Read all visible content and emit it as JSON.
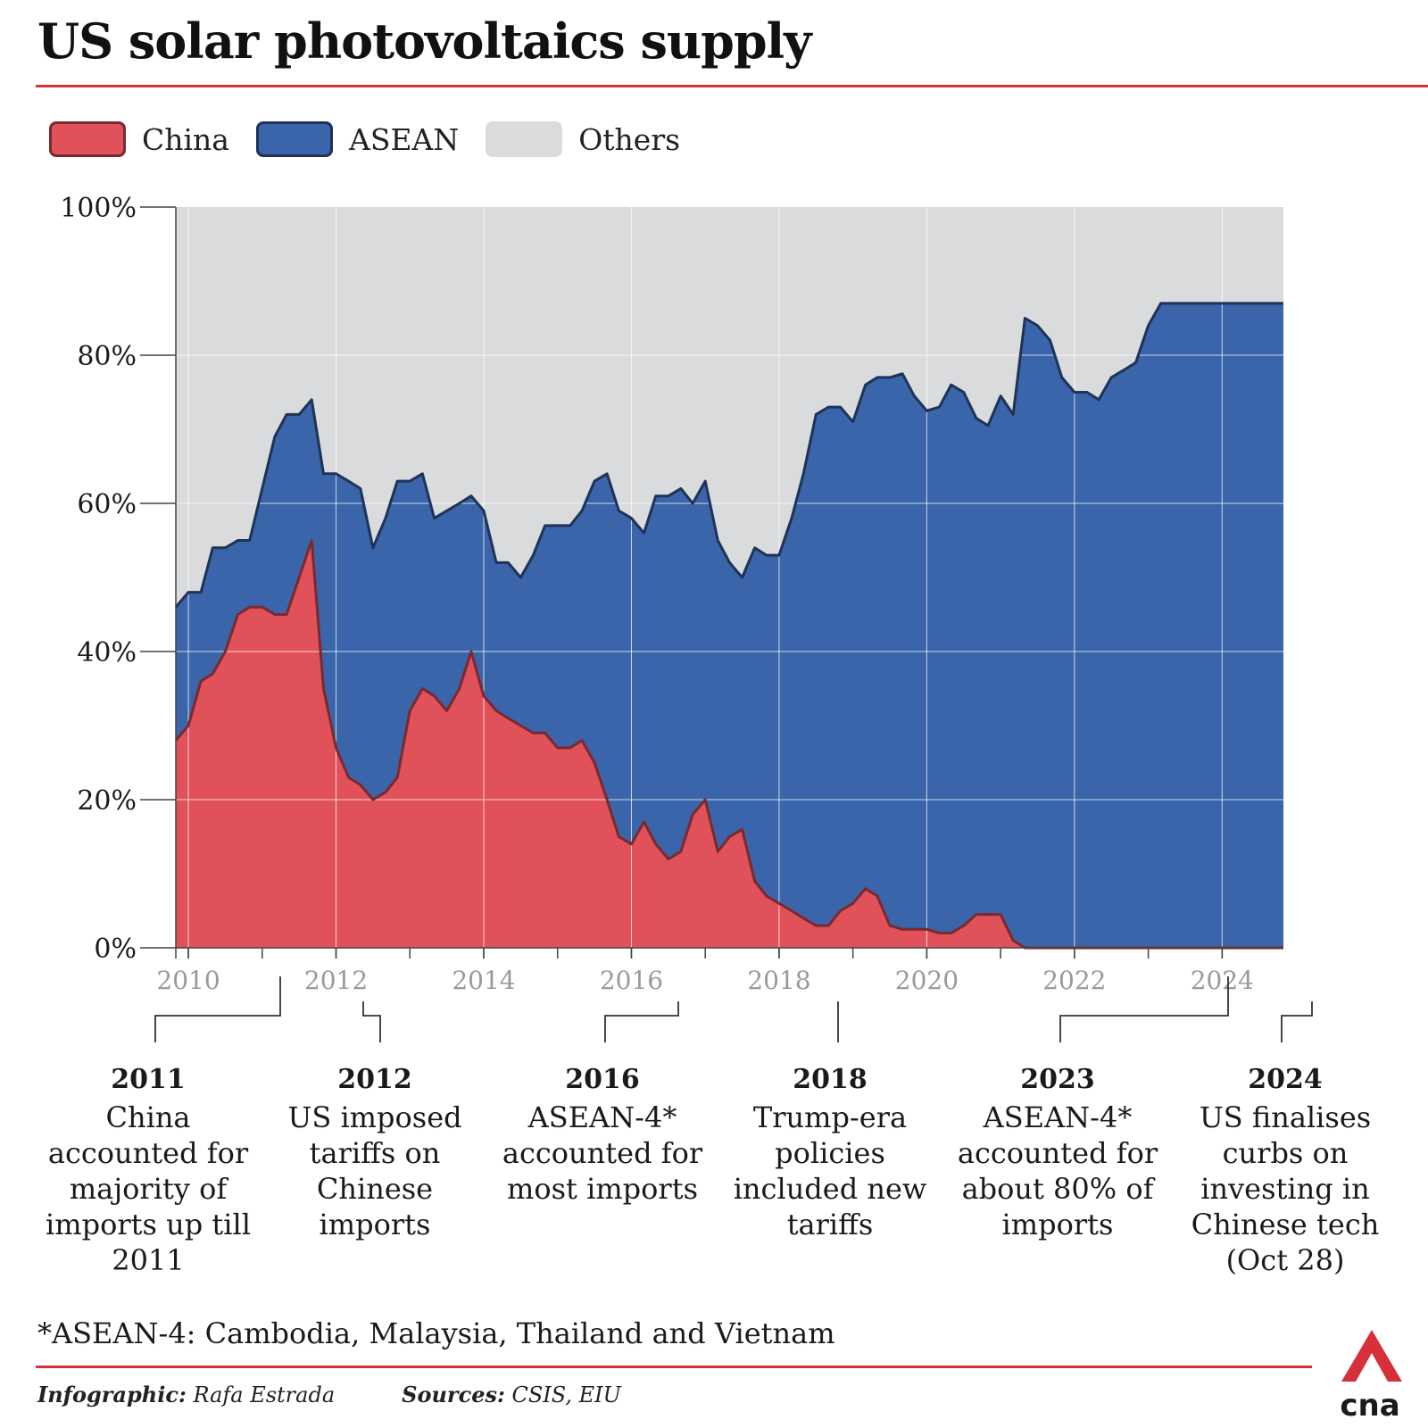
{
  "title": "US solar photovoltaics supply",
  "legend": [
    {
      "name": "China",
      "color": "#e0515a",
      "stroke": "#7a2a2e"
    },
    {
      "name": "ASEAN",
      "color": "#3a65aa",
      "stroke": "#1e3357"
    },
    {
      "name": "Others",
      "color": "#dadbdd",
      "stroke": "#dadbdd"
    }
  ],
  "annotations": [
    {
      "year": "2011",
      "text": "China accounted for majority of imports up till 2011"
    },
    {
      "year": "2012",
      "text": "US imposed tariffs on Chinese imports"
    },
    {
      "year": "2016",
      "text": "ASEAN-4* accounted for most imports"
    },
    {
      "year": "2018",
      "text": "Trump-era policies included new tariffs"
    },
    {
      "year": "2023",
      "text": "ASEAN-4* accounted for about 80% of imports"
    },
    {
      "year": "2024",
      "text": "US finalises curbs on investing in Chinese tech (Oct 28)"
    }
  ],
  "footnote": "*ASEAN-4: Cambodia, Malaysia, Thailand and Vietnam",
  "credits": {
    "infographic_label": "Infographic:",
    "infographic_value": "Rafa Estrada",
    "sources_label": "Sources:",
    "sources_value": "CSIS, EIU"
  },
  "logo_text": "cna",
  "chart_data": {
    "type": "area",
    "stacked": true,
    "ylim": [
      0,
      100
    ],
    "xlim": [
      2009.83,
      2024.83
    ],
    "yticks": [
      0,
      20,
      40,
      60,
      80,
      100
    ],
    "ytick_labels": [
      "0%",
      "20%",
      "40%",
      "60%",
      "80%",
      "100%"
    ],
    "xticks": [
      2010,
      2012,
      2014,
      2016,
      2018,
      2020,
      2022,
      2024
    ],
    "xtick_labels": [
      "2010",
      "2012",
      "2014",
      "2016",
      "2018",
      "2020",
      "2022",
      "2024"
    ],
    "grid": true,
    "legend_position": "top-left",
    "x": [
      2009.83,
      2010.0,
      2010.17,
      2010.33,
      2010.5,
      2010.67,
      2010.83,
      2011.0,
      2011.17,
      2011.33,
      2011.5,
      2011.67,
      2011.83,
      2012.0,
      2012.17,
      2012.33,
      2012.5,
      2012.67,
      2012.83,
      2013.0,
      2013.17,
      2013.33,
      2013.5,
      2013.67,
      2013.83,
      2014.0,
      2014.17,
      2014.33,
      2014.5,
      2014.67,
      2014.83,
      2015.0,
      2015.17,
      2015.33,
      2015.5,
      2015.67,
      2015.83,
      2016.0,
      2016.17,
      2016.33,
      2016.5,
      2016.67,
      2016.83,
      2017.0,
      2017.17,
      2017.33,
      2017.5,
      2017.67,
      2017.83,
      2018.0,
      2018.17,
      2018.33,
      2018.5,
      2018.67,
      2018.83,
      2019.0,
      2019.17,
      2019.33,
      2019.5,
      2019.67,
      2019.83,
      2020.0,
      2020.17,
      2020.33,
      2020.5,
      2020.67,
      2020.83,
      2021.0,
      2021.17,
      2021.33,
      2021.5,
      2021.67,
      2021.83,
      2022.0,
      2022.17,
      2022.33,
      2022.5,
      2022.67,
      2022.83,
      2023.0,
      2023.17,
      2023.33,
      2023.5,
      2023.67,
      2023.83,
      2024.0,
      2024.17,
      2024.33,
      2024.5,
      2024.67,
      2024.83
    ],
    "series": [
      {
        "name": "China",
        "values": [
          28,
          30,
          36,
          37,
          40,
          45,
          46,
          46,
          45,
          45,
          50,
          55,
          35,
          27,
          23,
          22,
          20,
          21,
          23,
          32,
          35,
          34,
          32,
          35,
          40,
          34,
          32,
          31,
          30,
          29,
          29,
          27,
          27,
          28,
          25,
          20,
          15,
          14,
          17,
          14,
          12,
          13,
          18,
          20,
          13,
          15,
          16,
          9,
          7,
          6,
          5,
          4,
          3,
          3,
          5,
          6,
          8,
          7,
          3,
          2.5,
          2.5,
          2.5,
          2,
          2,
          3,
          4.5,
          4.5,
          4.5,
          1,
          0,
          0,
          0,
          0,
          0,
          0,
          0,
          0,
          0,
          0,
          0,
          0,
          0,
          0,
          0,
          0,
          0,
          0,
          0,
          0,
          0,
          0
        ]
      },
      {
        "name": "ASEAN",
        "values": [
          18,
          18,
          12,
          17,
          14,
          10,
          9,
          16,
          24,
          27,
          22,
          19,
          29,
          37,
          40,
          40,
          34,
          37,
          40,
          31,
          29,
          24,
          27,
          25,
          21,
          25,
          20,
          21,
          20,
          24,
          28,
          30,
          30,
          31,
          38,
          44,
          44,
          44,
          39,
          47,
          49,
          49,
          42,
          43,
          42,
          37,
          34,
          45,
          46,
          47,
          53,
          60,
          69,
          70,
          68,
          65,
          68,
          70,
          74,
          75,
          72,
          70,
          71,
          74,
          72,
          67,
          66,
          70,
          71,
          85,
          84,
          82,
          77,
          75,
          75,
          74,
          77,
          78,
          79,
          84,
          87,
          87,
          87,
          87,
          87,
          87,
          87,
          87,
          87,
          87,
          87
        ]
      }
    ]
  }
}
